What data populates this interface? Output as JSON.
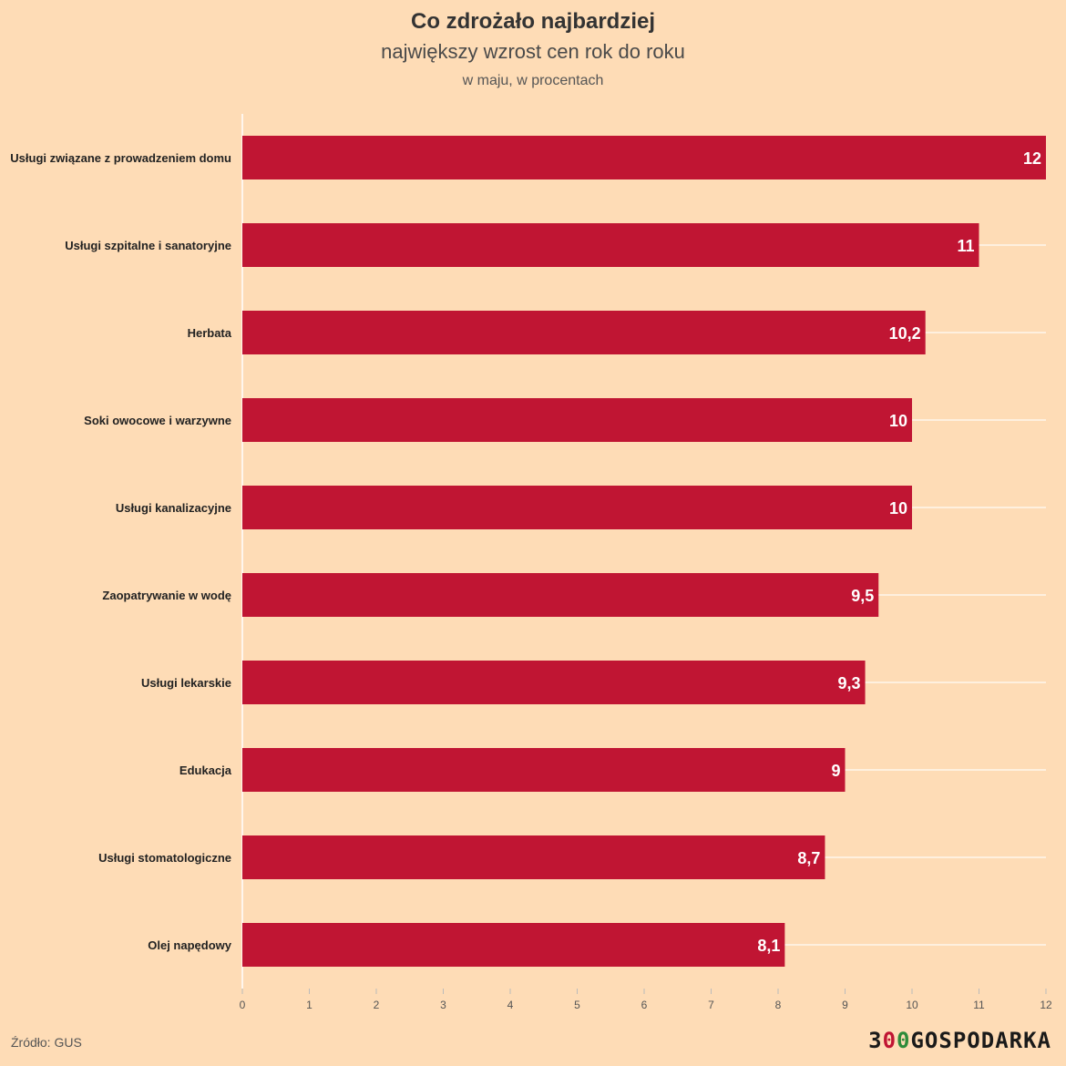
{
  "header": {
    "title": "Co zdrożało najbardziej",
    "subtitle": "największy wzrost cen rok do roku",
    "note": "w maju, w procentach"
  },
  "footer": {
    "source": "Źródło: GUS",
    "logo_text": "300GOSPODARKA"
  },
  "colors": {
    "background": "#fedcb6",
    "bar": "#c01533",
    "bar_label": "#ffffff",
    "grid": "#ffffff",
    "logo_digit_red": "#c01533",
    "logo_digit_green": "#2e8b3a"
  },
  "chart_data": {
    "type": "bar",
    "orientation": "horizontal",
    "title": "Co zdrożało najbardziej",
    "subtitle": "największy wzrost cen rok do roku",
    "xlabel": "",
    "ylabel": "",
    "xlim": [
      0,
      12
    ],
    "ticks": [
      0,
      1,
      2,
      3,
      4,
      5,
      6,
      7,
      8,
      9,
      10,
      11,
      12
    ],
    "grid": true,
    "categories": [
      "Usługi związane z prowadzeniem domu",
      "Usługi szpitalne i sanatoryjne",
      "Herbata",
      "Soki owocowe i warzywne",
      "Usługi kanalizacyjne",
      "Zaopatrywanie w wodę",
      "Usługi lekarskie",
      "Edukacja",
      "Usługi stomatologiczne",
      "Olej napędowy"
    ],
    "values": [
      12,
      11,
      10.2,
      10,
      10,
      9.5,
      9.3,
      9,
      8.7,
      8.1
    ],
    "value_labels": [
      "12",
      "11",
      "10,2",
      "10",
      "10",
      "9,5",
      "9,3",
      "9",
      "8,7",
      "8,1"
    ]
  }
}
